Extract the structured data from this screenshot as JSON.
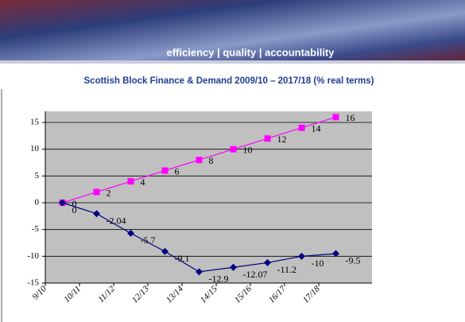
{
  "banner": "efficiency | quality | accountability",
  "chart_data": {
    "type": "line",
    "title": "Scottish Block Finance & Demand 2009/10 – 2017/18 (% real terms)",
    "categories": [
      "9/10",
      "10/11",
      "11/12",
      "12/13",
      "13/14",
      "14/15",
      "15/16",
      "16/17",
      "17/18"
    ],
    "series": [
      {
        "color": "#ff00ff",
        "marker": "square",
        "values": [
          0,
          2,
          4,
          6,
          8,
          10,
          12,
          14,
          16
        ]
      },
      {
        "color": "#000080",
        "marker": "diamond",
        "values": [
          0,
          -2.04,
          -5.7,
          -9.1,
          -12.9,
          -12.07,
          -11.2,
          -10,
          -9.5
        ]
      }
    ],
    "ylim": [
      -15,
      15
    ],
    "yticks": [
      -15,
      -10,
      -5,
      0,
      5,
      10,
      15
    ],
    "grid": true
  }
}
